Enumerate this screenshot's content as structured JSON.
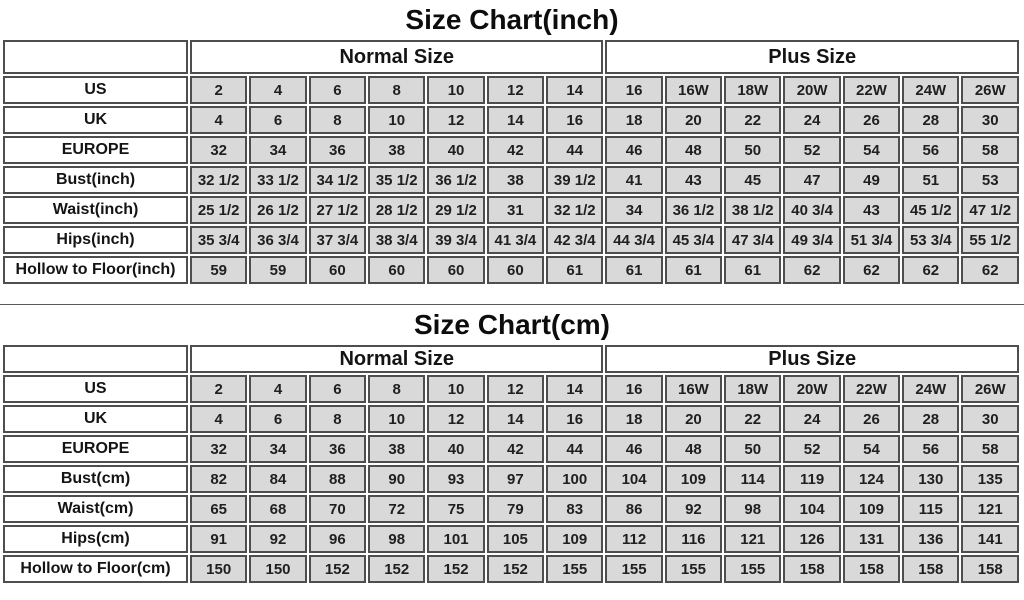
{
  "page": {
    "background": "#ffffff",
    "cell_fill": "#d9d9d9",
    "border_color": "#4e4e4e",
    "text_color": "#1b1b1b"
  },
  "chart_data": [
    {
      "type": "table",
      "title": "Size Chart(inch)",
      "corner_label": "",
      "groups": [
        {
          "label": "Normal Size",
          "span": 7
        },
        {
          "label": "Plus Size",
          "span": 7
        }
      ],
      "rows": [
        {
          "label": "US",
          "values": [
            "2",
            "4",
            "6",
            "8",
            "10",
            "12",
            "14",
            "16",
            "16W",
            "18W",
            "20W",
            "22W",
            "24W",
            "26W"
          ]
        },
        {
          "label": "UK",
          "values": [
            "4",
            "6",
            "8",
            "10",
            "12",
            "14",
            "16",
            "18",
            "20",
            "22",
            "24",
            "26",
            "28",
            "30"
          ]
        },
        {
          "label": "EUROPE",
          "values": [
            "32",
            "34",
            "36",
            "38",
            "40",
            "42",
            "44",
            "46",
            "48",
            "50",
            "52",
            "54",
            "56",
            "58"
          ]
        },
        {
          "label": "Bust(inch)",
          "values": [
            "32 1/2",
            "33 1/2",
            "34 1/2",
            "35 1/2",
            "36 1/2",
            "38",
            "39 1/2",
            "41",
            "43",
            "45",
            "47",
            "49",
            "51",
            "53"
          ]
        },
        {
          "label": "Waist(inch)",
          "values": [
            "25 1/2",
            "26 1/2",
            "27 1/2",
            "28 1/2",
            "29 1/2",
            "31",
            "32 1/2",
            "34",
            "36 1/2",
            "38 1/2",
            "40 3/4",
            "43",
            "45 1/2",
            "47 1/2"
          ]
        },
        {
          "label": "Hips(inch)",
          "values": [
            "35 3/4",
            "36 3/4",
            "37 3/4",
            "38 3/4",
            "39 3/4",
            "41 3/4",
            "42 3/4",
            "44 3/4",
            "45 3/4",
            "47 3/4",
            "49 3/4",
            "51 3/4",
            "53 3/4",
            "55 1/2"
          ]
        },
        {
          "label": "Hollow to Floor(inch)",
          "values": [
            "59",
            "59",
            "60",
            "60",
            "60",
            "60",
            "61",
            "61",
            "61",
            "61",
            "62",
            "62",
            "62",
            "62"
          ]
        }
      ]
    },
    {
      "type": "table",
      "title": "Size Chart(cm)",
      "corner_label": "",
      "groups": [
        {
          "label": "Normal Size",
          "span": 7
        },
        {
          "label": "Plus Size",
          "span": 7
        }
      ],
      "rows": [
        {
          "label": "US",
          "values": [
            "2",
            "4",
            "6",
            "8",
            "10",
            "12",
            "14",
            "16",
            "16W",
            "18W",
            "20W",
            "22W",
            "24W",
            "26W"
          ]
        },
        {
          "label": "UK",
          "values": [
            "4",
            "6",
            "8",
            "10",
            "12",
            "14",
            "16",
            "18",
            "20",
            "22",
            "24",
            "26",
            "28",
            "30"
          ]
        },
        {
          "label": "EUROPE",
          "values": [
            "32",
            "34",
            "36",
            "38",
            "40",
            "42",
            "44",
            "46",
            "48",
            "50",
            "52",
            "54",
            "56",
            "58"
          ]
        },
        {
          "label": "Bust(cm)",
          "values": [
            "82",
            "84",
            "88",
            "90",
            "93",
            "97",
            "100",
            "104",
            "109",
            "114",
            "119",
            "124",
            "130",
            "135"
          ]
        },
        {
          "label": "Waist(cm)",
          "values": [
            "65",
            "68",
            "70",
            "72",
            "75",
            "79",
            "83",
            "86",
            "92",
            "98",
            "104",
            "109",
            "115",
            "121"
          ]
        },
        {
          "label": "Hips(cm)",
          "values": [
            "91",
            "92",
            "96",
            "98",
            "101",
            "105",
            "109",
            "112",
            "116",
            "121",
            "126",
            "131",
            "136",
            "141"
          ]
        },
        {
          "label": "Hollow to Floor(cm)",
          "values": [
            "150",
            "150",
            "152",
            "152",
            "152",
            "152",
            "155",
            "155",
            "155",
            "155",
            "158",
            "158",
            "158",
            "158"
          ]
        }
      ]
    }
  ]
}
